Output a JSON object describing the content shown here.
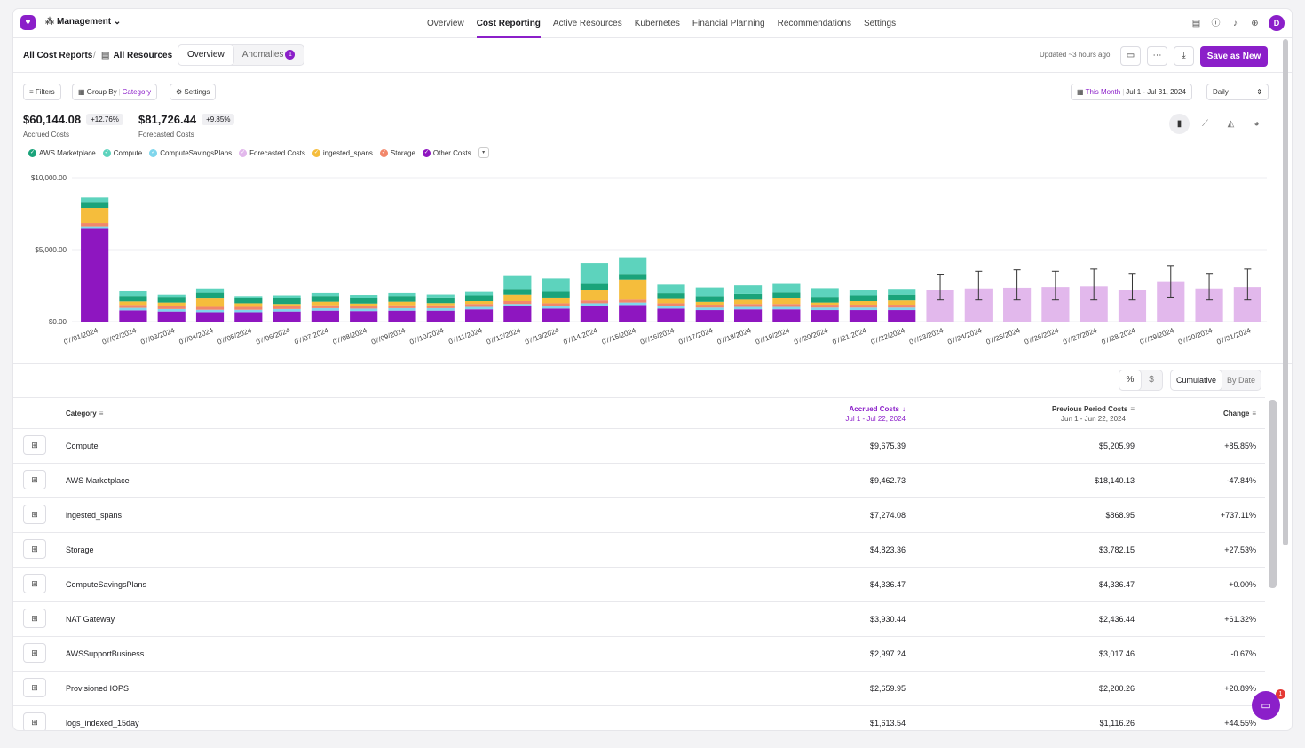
{
  "nav": {
    "logo_glyph": "♥",
    "org_label": "Management",
    "links": [
      {
        "label": "Overview",
        "active": false
      },
      {
        "label": "Cost Reporting",
        "active": true
      },
      {
        "label": "Active Resources",
        "active": false
      },
      {
        "label": "Kubernetes",
        "active": false,
        "dot": true
      },
      {
        "label": "Financial Planning",
        "active": false
      },
      {
        "label": "Recommendations",
        "active": false
      },
      {
        "label": "Settings",
        "active": false
      }
    ],
    "icons": [
      "document-icon",
      "help-icon",
      "bell-icon",
      "plus-circle-icon"
    ],
    "avatar_initial": "D"
  },
  "header": {
    "crumb_all_reports": "All Cost Reports",
    "crumb_sep": "/",
    "crumb_resources": "All Resources",
    "tab_overview": "Overview",
    "tab_anomalies": "Anomalies",
    "anomaly_count": "1",
    "updated": "Updated ~3 hours ago",
    "save_label": "Save as New"
  },
  "toolbar": {
    "filters": "Filters",
    "group_by": "Group By",
    "group_value": "Category",
    "settings": "Settings",
    "date_range_name": "This Month",
    "date_range": "Jul 1 - Jul 31, 2024",
    "granularity": "Daily"
  },
  "kpis": {
    "accrued_value": "$60,144.08",
    "accrued_delta": "+12.76%",
    "accrued_label": "Accrued Costs",
    "forecast_value": "$81,726.44",
    "forecast_delta": "+9.85%",
    "forecast_label": "Forecasted Costs"
  },
  "legend": [
    {
      "name": "AWS Marketplace",
      "color": "#1aa37a"
    },
    {
      "name": "Compute",
      "color": "#5dd3bd"
    },
    {
      "name": "ComputeSavingsPlans",
      "color": "#7fd6ec"
    },
    {
      "name": "Forecasted Costs",
      "color": "#e2b8ec"
    },
    {
      "name": "ingested_spans",
      "color": "#f5bd3c"
    },
    {
      "name": "Storage",
      "color": "#f2876b"
    },
    {
      "name": "Other Costs",
      "color": "#8e16c0"
    }
  ],
  "chart_data": {
    "type": "bar",
    "stacked": true,
    "ylim": [
      0,
      10000
    ],
    "y_ticks": [
      "$10,000.00",
      "$5,000.00",
      "$0.00"
    ],
    "y_tick_values": [
      10000,
      5000,
      0
    ],
    "categories": [
      "07/01/2024",
      "07/02/2024",
      "07/03/2024",
      "07/04/2024",
      "07/05/2024",
      "07/06/2024",
      "07/07/2024",
      "07/08/2024",
      "07/09/2024",
      "07/10/2024",
      "07/11/2024",
      "07/12/2024",
      "07/13/2024",
      "07/14/2024",
      "07/15/2024",
      "07/16/2024",
      "07/17/2024",
      "07/18/2024",
      "07/19/2024",
      "07/20/2024",
      "07/21/2024",
      "07/22/2024",
      "07/23/2024",
      "07/24/2024",
      "07/25/2024",
      "07/26/2024",
      "07/27/2024",
      "07/28/2024",
      "07/29/2024",
      "07/30/2024",
      "07/31/2024"
    ],
    "series": [
      {
        "name": "Other Costs",
        "color": "#8e16c0",
        "values": [
          6450,
          780,
          700,
          650,
          650,
          700,
          760,
          730,
          760,
          760,
          850,
          1050,
          900,
          1100,
          1150,
          900,
          800,
          850,
          850,
          800,
          800,
          800,
          0,
          0,
          0,
          0,
          0,
          0,
          0,
          0,
          0
        ]
      },
      {
        "name": "ComputeSavingsPlans",
        "color": "#7fd6ec",
        "values": [
          180,
          170,
          170,
          170,
          170,
          170,
          170,
          170,
          170,
          170,
          170,
          170,
          170,
          170,
          170,
          170,
          170,
          170,
          170,
          170,
          170,
          170,
          0,
          0,
          0,
          0,
          0,
          0,
          0,
          0,
          0
        ]
      },
      {
        "name": "Storage",
        "color": "#f2876b",
        "values": [
          220,
          200,
          200,
          200,
          200,
          200,
          200,
          200,
          200,
          200,
          200,
          200,
          200,
          200,
          200,
          200,
          200,
          200,
          200,
          200,
          200,
          200,
          0,
          0,
          0,
          0,
          0,
          0,
          0,
          0,
          0
        ]
      },
      {
        "name": "ingested_spans",
        "color": "#f5bd3c",
        "values": [
          1050,
          250,
          250,
          580,
          250,
          150,
          250,
          150,
          250,
          150,
          200,
          450,
          400,
          750,
          1400,
          300,
          200,
          300,
          400,
          150,
          250,
          300,
          0,
          0,
          0,
          0,
          0,
          0,
          0,
          0,
          0
        ]
      },
      {
        "name": "AWS Marketplace",
        "color": "#1aa37a",
        "values": [
          420,
          380,
          400,
          400,
          400,
          400,
          400,
          400,
          400,
          400,
          400,
          400,
          400,
          400,
          400,
          400,
          400,
          400,
          400,
          400,
          400,
          400,
          0,
          0,
          0,
          0,
          0,
          0,
          0,
          0,
          0
        ]
      },
      {
        "name": "Compute",
        "color": "#5dd3bd",
        "values": [
          300,
          320,
          150,
          300,
          100,
          200,
          200,
          200,
          200,
          200,
          240,
          900,
          930,
          1450,
          1150,
          600,
          600,
          600,
          600,
          600,
          400,
          400,
          0,
          0,
          0,
          0,
          0,
          0,
          0,
          0,
          0
        ]
      },
      {
        "name": "Forecasted Costs",
        "color": "#e2b8ec",
        "values": [
          0,
          0,
          0,
          0,
          0,
          0,
          0,
          0,
          0,
          0,
          0,
          0,
          0,
          0,
          0,
          0,
          0,
          0,
          0,
          0,
          0,
          0,
          2200,
          2300,
          2350,
          2400,
          2450,
          2200,
          2800,
          2300,
          2400
        ]
      }
    ],
    "forecast_error": [
      null,
      null,
      null,
      null,
      null,
      null,
      null,
      null,
      null,
      null,
      null,
      null,
      null,
      null,
      null,
      null,
      null,
      null,
      null,
      null,
      null,
      null,
      [
        1500,
        3300
      ],
      [
        1500,
        3500
      ],
      [
        1500,
        3600
      ],
      [
        1500,
        3500
      ],
      [
        1500,
        3650
      ],
      [
        1500,
        3350
      ],
      [
        1700,
        3900
      ],
      [
        1500,
        3350
      ],
      [
        1500,
        3650
      ]
    ]
  },
  "table_controls": {
    "percent": "%",
    "dollar": "$",
    "cumulative": "Cumulative",
    "by_date": "By Date"
  },
  "table": {
    "columns": {
      "category": "Category",
      "accrued": "Accrued Costs",
      "accrued_sub": "Jul 1 - Jul 22, 2024",
      "previous": "Previous Period Costs",
      "previous_sub": "Jun 1 - Jun 22, 2024",
      "change": "Change"
    },
    "rows": [
      {
        "category": "Compute",
        "accrued": "$9,675.39",
        "previous": "$5,205.99",
        "change": "+85.85%"
      },
      {
        "category": "AWS Marketplace",
        "accrued": "$9,462.73",
        "previous": "$18,140.13",
        "change": "-47.84%"
      },
      {
        "category": "ingested_spans",
        "accrued": "$7,274.08",
        "previous": "$868.95",
        "change": "+737.11%"
      },
      {
        "category": "Storage",
        "accrued": "$4,823.36",
        "previous": "$3,782.15",
        "change": "+27.53%"
      },
      {
        "category": "ComputeSavingsPlans",
        "accrued": "$4,336.47",
        "previous": "$4,336.47",
        "change": "+0.00%"
      },
      {
        "category": "NAT Gateway",
        "accrued": "$3,930.44",
        "previous": "$2,436.44",
        "change": "+61.32%"
      },
      {
        "category": "AWSSupportBusiness",
        "accrued": "$2,997.24",
        "previous": "$3,017.46",
        "change": "-0.67%"
      },
      {
        "category": "Provisioned IOPS",
        "accrued": "$2,659.95",
        "previous": "$2,200.26",
        "change": "+20.89%"
      },
      {
        "category": "logs_indexed_15day",
        "accrued": "$1,613.54",
        "previous": "$1,116.26",
        "change": "+44.55%"
      }
    ]
  },
  "chat": {
    "badge": "1"
  }
}
